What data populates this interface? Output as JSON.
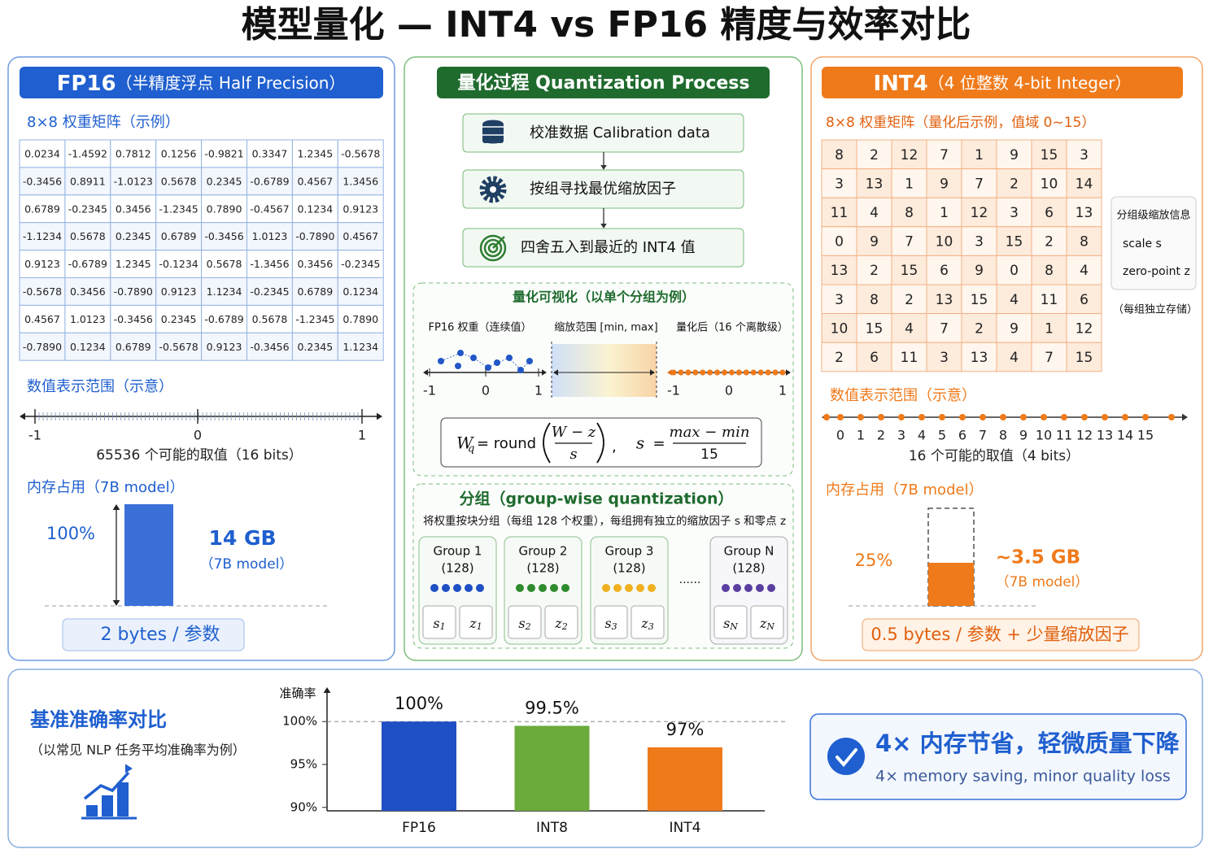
{
  "title": "模型量化 — INT4 vs FP16 精度与效率对比",
  "fp16": {
    "header": "FP16",
    "header_sub": "（半精度浮点 Half Precision）",
    "matrix_title": "8×8 权重矩阵（示例）",
    "matrix": [
      [
        "0.0234",
        "-1.4592",
        "0.7812",
        "0.1256",
        "-0.9821",
        "0.3347",
        "1.2345",
        "-0.5678"
      ],
      [
        "-0.3456",
        "0.8911",
        "-1.0123",
        "0.5678",
        "0.2345",
        "-0.6789",
        "0.4567",
        "1.3456"
      ],
      [
        "0.6789",
        "-0.2345",
        "0.3456",
        "-1.2345",
        "0.7890",
        "-0.4567",
        "0.1234",
        "0.9123"
      ],
      [
        "-1.1234",
        "0.5678",
        "0.2345",
        "0.6789",
        "-0.3456",
        "1.0123",
        "-0.7890",
        "0.4567"
      ],
      [
        "0.9123",
        "-0.6789",
        "1.2345",
        "-0.1234",
        "0.5678",
        "-1.3456",
        "0.3456",
        "-0.2345"
      ],
      [
        "-0.5678",
        "0.3456",
        "-0.7890",
        "0.9123",
        "1.1234",
        "-0.2345",
        "0.6789",
        "0.1234"
      ],
      [
        "0.4567",
        "1.0123",
        "-0.3456",
        "0.2345",
        "-0.6789",
        "0.5678",
        "-1.2345",
        "0.7890"
      ],
      [
        "-0.7890",
        "0.1234",
        "0.6789",
        "-0.5678",
        "0.9123",
        "-0.3456",
        "0.2345",
        "1.1234"
      ]
    ],
    "range_title": "数值表示范围（示意）",
    "range_labels": [
      -1,
      0,
      1
    ],
    "range_caption": "65536 个可能的取值（16 bits）",
    "memory_title": "内存占用（7B model）",
    "memory_percent": "100%",
    "memory_size": "14 GB",
    "memory_model": "（7B model）",
    "bytes": "2 bytes / 参数"
  },
  "process": {
    "header": "量化过程 Quantization Process",
    "steps": [
      "校准数据 Calibration data",
      "按组寻找最优缩放因子",
      "四舍五入到最近的 INT4 值"
    ],
    "vis_title": "量化可视化（以单个分组为例）",
    "vis_labels": [
      "FP16 权重（连续值）",
      "缩放范围 [min, max]",
      "量化后（16 个离散级）"
    ],
    "continuous_axis": [
      -1,
      0,
      1
    ],
    "discrete_axis": [
      -1,
      0,
      1
    ],
    "formula": {
      "lhs": "W",
      "lhs_sub": "q",
      "op": "= round",
      "num": "W − z",
      "den": "s",
      "sep": ",",
      "s": "s",
      "eq": "=",
      "num2": "max − min",
      "den2": "15"
    },
    "group_title": "分组（group-wise quantization）",
    "group_desc": "将权重按块分组（每组 128 个权重），每组拥有独立的缩放因子 s 和零点 z",
    "groups": [
      {
        "name": "Group 1",
        "size": "(128)",
        "s": "s",
        "s_sub": "1",
        "z": "z",
        "z_sub": "1"
      },
      {
        "name": "Group 2",
        "size": "(128)",
        "s": "s",
        "s_sub": "2",
        "z": "z",
        "z_sub": "2"
      },
      {
        "name": "Group 3",
        "size": "(128)",
        "s": "s",
        "s_sub": "3",
        "z": "z",
        "z_sub": "3"
      },
      {
        "name": "Group N",
        "size": "(128)",
        "s": "s",
        "s_sub": "N",
        "z": "z",
        "z_sub": "N"
      }
    ],
    "ellipsis": "......"
  },
  "int4": {
    "header": "INT4",
    "header_sub": "（4 位整数 4-bit Integer）",
    "matrix_title": "8×8 权重矩阵（量化后示例，值域 0~15）",
    "matrix": [
      [
        8,
        2,
        12,
        7,
        1,
        9,
        15,
        3
      ],
      [
        3,
        13,
        1,
        9,
        7,
        2,
        10,
        14
      ],
      [
        11,
        4,
        8,
        1,
        12,
        3,
        6,
        13
      ],
      [
        0,
        9,
        7,
        10,
        3,
        15,
        2,
        8
      ],
      [
        13,
        2,
        15,
        6,
        9,
        0,
        8,
        4
      ],
      [
        3,
        8,
        2,
        13,
        15,
        4,
        11,
        6
      ],
      [
        10,
        15,
        4,
        7,
        2,
        9,
        1,
        12
      ],
      [
        2,
        6,
        11,
        3,
        13,
        4,
        7,
        15
      ]
    ],
    "info_title": "分组级缩放信息",
    "info_scale": "scale s",
    "info_zero": "zero-point z",
    "info_note": "（每组独立存储）",
    "range_title": "数值表示范围（示意）",
    "range_labels": [
      0,
      1,
      2,
      3,
      4,
      5,
      6,
      7,
      8,
      9,
      10,
      11,
      12,
      13,
      14,
      15
    ],
    "range_caption": "16 个可能的取值（4 bits）",
    "memory_title": "内存占用（7B model）",
    "memory_percent": "25%",
    "memory_size": "~3.5 GB",
    "memory_model": "（7B model）",
    "bytes": "0.5 bytes / 参数 + 少量缩放因子"
  },
  "accuracy": {
    "title": "基准准确率对比",
    "subtitle": "（以常见 NLP 任务平均准确率为例）"
  },
  "chart_data": {
    "type": "bar",
    "ylabel": "准确率",
    "categories": [
      "FP16",
      "INT8",
      "INT4"
    ],
    "values": [
      100,
      99.5,
      97
    ],
    "value_labels": [
      "100%",
      "99.5%",
      "97%"
    ],
    "colors": [
      "#1f4fc4",
      "#6aab3c",
      "#ef7a1a"
    ],
    "ylim": [
      89.6,
      104
    ],
    "yticks": [
      {
        "value": 90,
        "label": "90%"
      },
      {
        "value": 95,
        "label": "95%"
      },
      {
        "value": 100,
        "label": "100%"
      }
    ],
    "reference_line": 100
  },
  "callout": {
    "title": "4× 内存节省，轻微质量下降",
    "subtitle": "4× memory saving, minor quality loss"
  }
}
